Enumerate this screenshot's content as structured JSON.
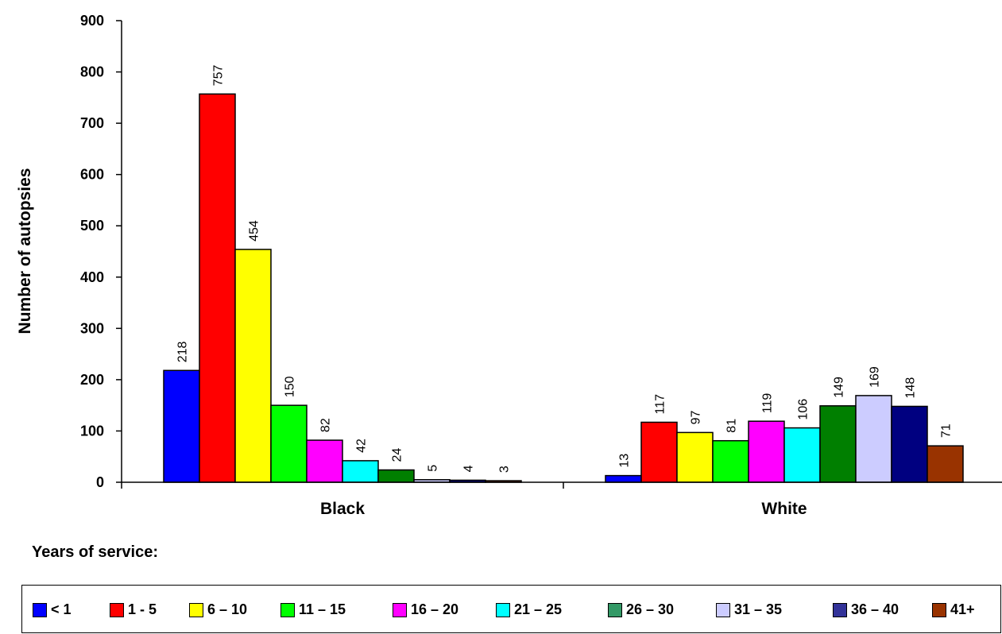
{
  "chart_data": {
    "type": "bar",
    "ylabel": "Number of autopsies",
    "ylim": [
      0,
      900
    ],
    "yticks": [
      0,
      100,
      200,
      300,
      400,
      500,
      600,
      700,
      800,
      900
    ],
    "categories": [
      "Black",
      "White"
    ],
    "legend_title": "Years of service:",
    "legend_placement": "bottom",
    "grid": false,
    "series": [
      {
        "name": "< 1",
        "color": "#0000FF",
        "values": [
          218,
          13
        ]
      },
      {
        "name": "1 - 5",
        "color": "#FF0000",
        "values": [
          757,
          117
        ]
      },
      {
        "name": "6 – 10",
        "color": "#FFFF00",
        "values": [
          454,
          97
        ]
      },
      {
        "name": "11 – 15",
        "color": "#00FF00",
        "values": [
          150,
          81
        ]
      },
      {
        "name": "16 – 20",
        "color": "#FF00FF",
        "values": [
          82,
          119
        ]
      },
      {
        "name": "21 – 25",
        "color": "#00FFFF",
        "values": [
          42,
          106
        ]
      },
      {
        "name": "26 – 30",
        "color": "#007F00",
        "values": [
          24,
          149
        ]
      },
      {
        "name": "31 – 35",
        "color": "#CCCCFF",
        "values": [
          5,
          169
        ]
      },
      {
        "name": "36 – 40",
        "color": "#000080",
        "values": [
          4,
          148
        ]
      },
      {
        "name": "41+",
        "color": "#993300",
        "values": [
          3,
          71
        ]
      }
    ],
    "legend_swatch_colors": [
      "#0000FF",
      "#FF0000",
      "#FFFF00",
      "#00FF00",
      "#FF00FF",
      "#00FFFF",
      "#339966",
      "#CCCCFF",
      "#333399",
      "#993300"
    ]
  }
}
